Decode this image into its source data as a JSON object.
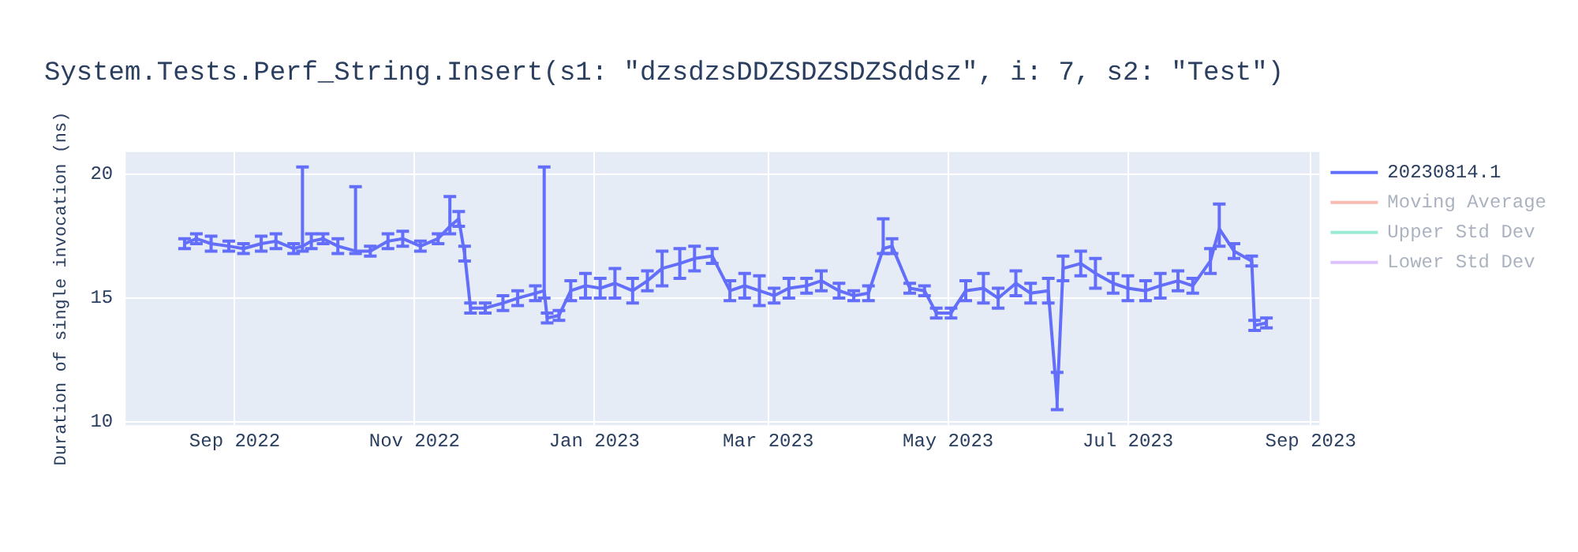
{
  "chart_data": {
    "type": "line",
    "title": "System.Tests.Perf_String.Insert(s1: \"dzsdzsDDZSDZSDZSddsz\", i: 7, s2: \"Test\")",
    "ylabel": "Duration of single invocation (ns)",
    "x": [
      "2022-08-15",
      "2022-08-19",
      "2022-08-24",
      "2022-08-30",
      "2022-09-04",
      "2022-09-10",
      "2022-09-15",
      "2022-09-21",
      "2022-09-24",
      "2022-09-27",
      "2022-10-01",
      "2022-10-06",
      "2022-10-12",
      "2022-10-17",
      "2022-10-23",
      "2022-10-28",
      "2022-11-03",
      "2022-11-09",
      "2022-11-13",
      "2022-11-16",
      "2022-11-18",
      "2022-11-20",
      "2022-11-25",
      "2022-12-01",
      "2022-12-06",
      "2022-12-12",
      "2022-12-15",
      "2022-12-16",
      "2022-12-20",
      "2022-12-24",
      "2022-12-29",
      "2023-01-03",
      "2023-01-08",
      "2023-01-14",
      "2023-01-19",
      "2023-01-24",
      "2023-01-30",
      "2023-02-04",
      "2023-02-10",
      "2023-02-16",
      "2023-02-21",
      "2023-02-26",
      "2023-03-03",
      "2023-03-08",
      "2023-03-14",
      "2023-03-19",
      "2023-03-25",
      "2023-03-30",
      "2023-04-04",
      "2023-04-09",
      "2023-04-12",
      "2023-04-18",
      "2023-04-23",
      "2023-04-27",
      "2023-05-02",
      "2023-05-07",
      "2023-05-13",
      "2023-05-18",
      "2023-05-24",
      "2023-05-29",
      "2023-06-04",
      "2023-06-07",
      "2023-06-09",
      "2023-06-15",
      "2023-06-20",
      "2023-06-26",
      "2023-07-01",
      "2023-07-07",
      "2023-07-12",
      "2023-07-18",
      "2023-07-23",
      "2023-07-29",
      "2023-08-01",
      "2023-08-06",
      "2023-08-12",
      "2023-08-13",
      "2023-08-17"
    ],
    "series": [
      {
        "name": "20230814.1",
        "color": "#636efa",
        "values": [
          17.2,
          17.4,
          17.2,
          17.1,
          17.0,
          17.2,
          17.3,
          17.0,
          17.1,
          17.3,
          17.4,
          17.1,
          16.9,
          16.9,
          17.3,
          17.4,
          17.1,
          17.4,
          17.9,
          18.2,
          16.8,
          14.6,
          14.6,
          14.8,
          15.0,
          15.2,
          15.3,
          14.2,
          14.3,
          15.3,
          15.5,
          15.4,
          15.6,
          15.3,
          15.7,
          16.2,
          16.4,
          16.6,
          16.7,
          15.3,
          15.5,
          15.3,
          15.1,
          15.4,
          15.5,
          15.7,
          15.3,
          15.1,
          15.2,
          17.0,
          17.1,
          15.4,
          15.3,
          14.4,
          14.4,
          15.3,
          15.4,
          15.0,
          15.6,
          15.2,
          15.3,
          10.9,
          16.2,
          16.4,
          16.0,
          15.6,
          15.4,
          15.3,
          15.5,
          15.7,
          15.5,
          16.5,
          17.8,
          16.9,
          16.5,
          13.9,
          14.0
        ],
        "errors": [
          0.2,
          0.2,
          0.3,
          0.2,
          0.2,
          0.3,
          0.3,
          0.2,
          [
            16.9,
            20.3
          ],
          0.3,
          0.2,
          0.3,
          [
            16.8,
            19.5
          ],
          0.2,
          0.3,
          0.3,
          0.2,
          0.2,
          [
            17.6,
            19.1
          ],
          0.3,
          0.3,
          0.2,
          0.2,
          0.3,
          0.3,
          0.3,
          [
            15.0,
            20.3
          ],
          0.2,
          0.2,
          0.4,
          0.5,
          0.4,
          0.6,
          0.5,
          0.4,
          0.7,
          0.6,
          0.5,
          0.3,
          0.4,
          0.5,
          0.6,
          0.3,
          0.4,
          0.3,
          0.4,
          0.3,
          0.2,
          0.3,
          [
            16.8,
            18.2
          ],
          0.3,
          0.2,
          0.2,
          0.2,
          0.2,
          0.4,
          0.6,
          0.4,
          0.5,
          0.4,
          0.5,
          [
            10.5,
            12.0
          ],
          0.5,
          0.5,
          0.6,
          0.4,
          0.5,
          0.4,
          0.5,
          0.4,
          0.3,
          0.5,
          [
            17.1,
            18.8
          ],
          0.3,
          0.2,
          0.2,
          0.2
        ]
      },
      {
        "name": "Moving Average",
        "color": "#ef553b",
        "values": [
          null,
          null,
          null,
          null,
          null,
          null,
          null,
          null,
          null,
          null,
          null,
          null,
          null,
          null,
          null,
          null,
          null,
          null,
          null,
          null,
          null,
          null,
          null,
          null,
          null,
          null,
          null,
          null,
          null,
          null,
          null,
          null,
          null,
          null,
          null,
          null,
          null,
          null,
          null,
          null,
          null,
          null,
          null,
          null,
          null,
          null,
          null,
          null,
          null,
          null,
          null,
          null,
          null,
          null,
          null,
          null,
          null,
          null,
          null,
          null,
          null,
          null,
          null,
          null,
          null,
          null,
          null,
          null,
          null,
          null,
          null,
          null,
          null,
          null,
          null,
          null,
          null
        ]
      },
      {
        "name": "Upper Std Dev",
        "color": "#00cc96",
        "values": [
          null,
          null,
          null,
          null,
          null,
          null,
          null,
          null,
          null,
          null,
          null,
          null,
          null,
          null,
          null,
          null,
          null,
          null,
          null,
          null,
          null,
          null,
          null,
          null,
          null,
          null,
          null,
          null,
          null,
          null,
          null,
          null,
          null,
          null,
          null,
          null,
          null,
          null,
          null,
          null,
          null,
          null,
          null,
          null,
          null,
          null,
          null,
          null,
          null,
          null,
          null,
          null,
          null,
          null,
          null,
          null,
          null,
          null,
          null,
          null,
          null,
          null,
          null,
          null,
          null,
          null,
          null,
          null,
          null,
          null,
          null,
          null,
          null,
          null,
          null,
          null,
          null
        ]
      },
      {
        "name": "Lower Std Dev",
        "color": "#ab63fa",
        "values": [
          null,
          null,
          null,
          null,
          null,
          null,
          null,
          null,
          null,
          null,
          null,
          null,
          null,
          null,
          null,
          null,
          null,
          null,
          null,
          null,
          null,
          null,
          null,
          null,
          null,
          null,
          null,
          null,
          null,
          null,
          null,
          null,
          null,
          null,
          null,
          null,
          null,
          null,
          null,
          null,
          null,
          null,
          null,
          null,
          null,
          null,
          null,
          null,
          null,
          null,
          null,
          null,
          null,
          null,
          null,
          null,
          null,
          null,
          null,
          null,
          null,
          null,
          null,
          null,
          null,
          null,
          null,
          null,
          null,
          null,
          null,
          null,
          null,
          null,
          null,
          null,
          null
        ]
      }
    ],
    "xlim": [
      "2022-07-26",
      "2023-09-04"
    ],
    "xticks": [
      {
        "value": "2022-09-01",
        "label": "Sep 2022"
      },
      {
        "value": "2022-11-01",
        "label": "Nov 2022"
      },
      {
        "value": "2023-01-01",
        "label": "Jan 2023"
      },
      {
        "value": "2023-03-01",
        "label": "Mar 2023"
      },
      {
        "value": "2023-05-01",
        "label": "May 2023"
      },
      {
        "value": "2023-07-01",
        "label": "Jul 2023"
      },
      {
        "value": "2023-09-01",
        "label": "Sep 2023"
      }
    ],
    "ylim": [
      9.87,
      20.9
    ],
    "yticks": [
      10,
      15,
      20
    ],
    "grid": true,
    "legend": "top right",
    "line_style": "solid"
  }
}
